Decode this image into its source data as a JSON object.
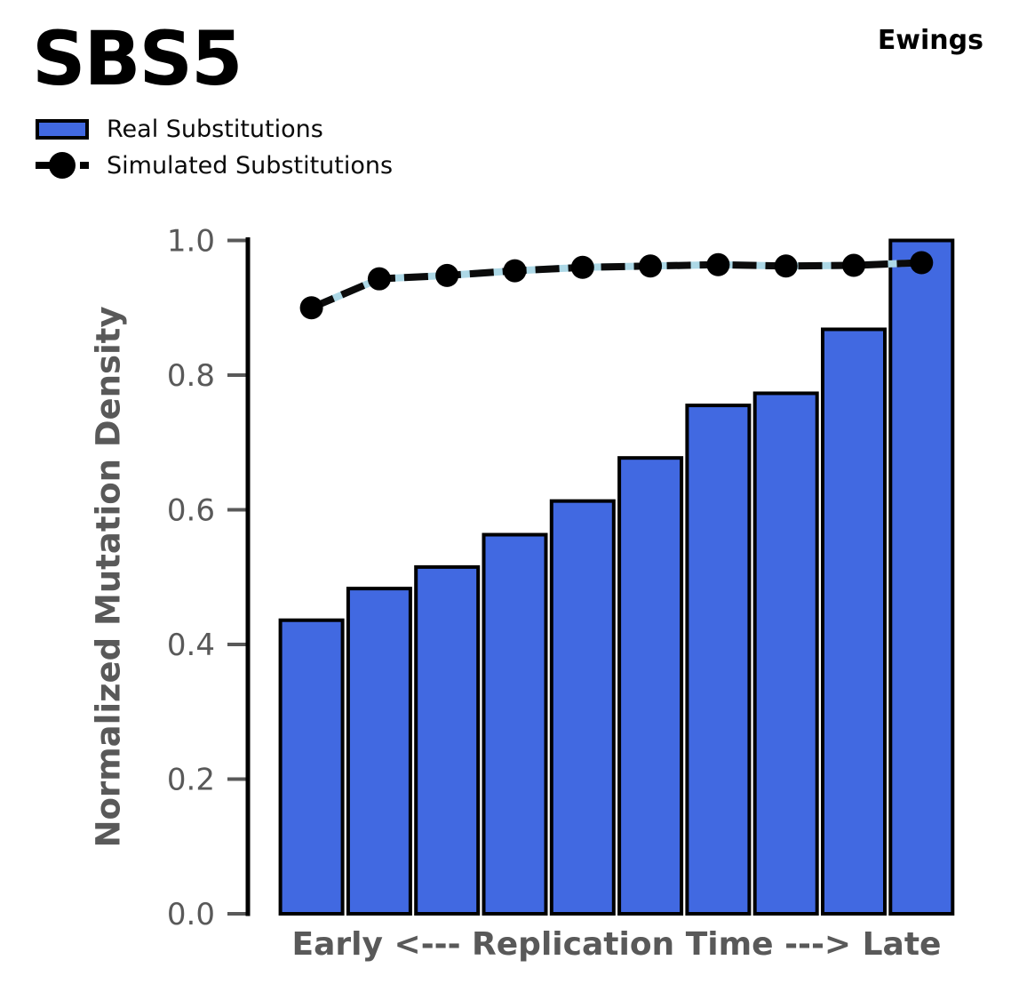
{
  "header": {
    "title": "SBS5",
    "sample": "Ewings"
  },
  "legend": {
    "items": [
      {
        "label": "Real Substitutions",
        "swatch": "bar"
      },
      {
        "label": "Simulated Substitutions",
        "swatch": "dashed-line-with-marker"
      }
    ],
    "position": "upper-left"
  },
  "chart_data": {
    "type": "bar",
    "title": "SBS5",
    "sample": "Ewings",
    "x": [
      1,
      2,
      3,
      4,
      5,
      6,
      7,
      8,
      9,
      10
    ],
    "series": [
      {
        "name": "Real Substitutions",
        "type": "bar",
        "values": [
          0.436,
          0.483,
          0.515,
          0.563,
          0.613,
          0.677,
          0.755,
          0.773,
          0.868,
          1.0
        ]
      },
      {
        "name": "Simulated Substitutions",
        "type": "line",
        "style": "dashed",
        "marker": "circle",
        "values": [
          0.9,
          0.943,
          0.948,
          0.955,
          0.96,
          0.962,
          0.964,
          0.962,
          0.963,
          0.967
        ]
      }
    ],
    "xlabel": "Early <--- Replication Time ---> Late",
    "ylabel": "Normalized Mutation Density",
    "ylim": [
      0.0,
      1.0
    ],
    "yticks": [
      0.0,
      0.2,
      0.4,
      0.6,
      0.8,
      1.0
    ],
    "grid": false,
    "legend_position": "upper-left",
    "colors": {
      "bar_fill": "#4169E1",
      "bar_edge": "#000000",
      "line": "#0b0b0b",
      "line_underlay": "#ADD8E6",
      "marker": "#000000",
      "spine": "#000000",
      "tick": "#595959",
      "tick_label": "#595959",
      "axis_label": "#595959",
      "title_text": "#000000"
    }
  }
}
